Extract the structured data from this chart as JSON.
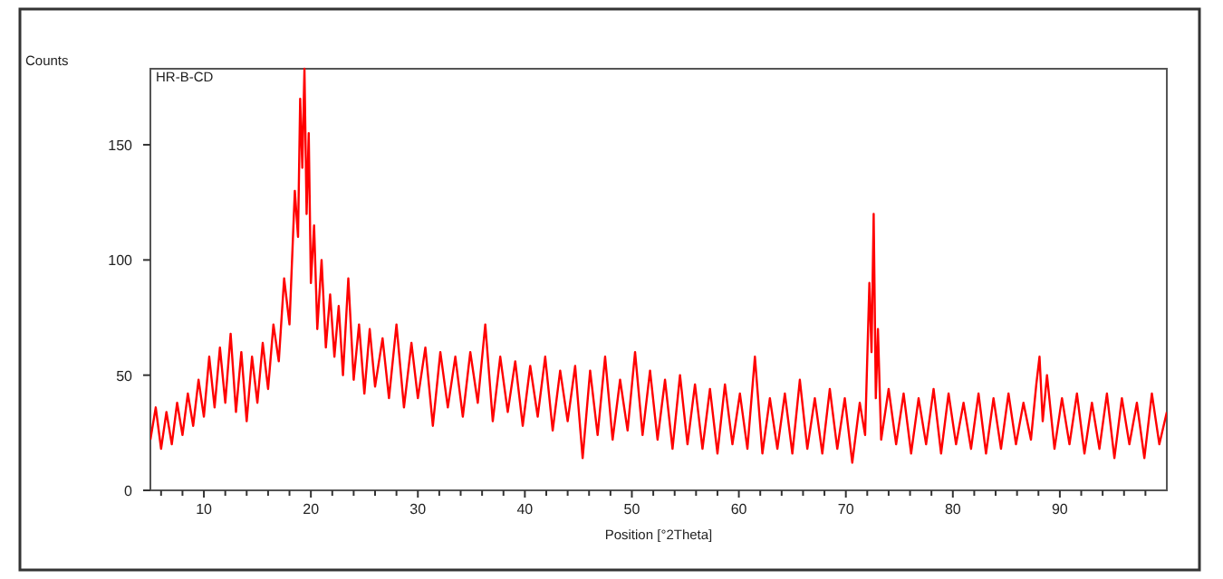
{
  "chart_data": {
    "type": "line",
    "title": "HR-B-CD",
    "xlabel": "Position [°2Theta]",
    "ylabel": "Counts",
    "xlim": [
      5,
      100
    ],
    "ylim": [
      0,
      183
    ],
    "xticks": [
      {
        "value": 6,
        "label": null
      },
      {
        "value": 8,
        "label": null
      },
      10,
      {
        "value": 12,
        "label": null
      },
      {
        "value": 14,
        "label": null
      },
      {
        "value": 16,
        "label": null
      },
      {
        "value": 18,
        "label": null
      },
      20,
      {
        "value": 22,
        "label": null
      },
      {
        "value": 24,
        "label": null
      },
      {
        "value": 26,
        "label": null
      },
      {
        "value": 28,
        "label": null
      },
      30,
      {
        "value": 32,
        "label": null
      },
      {
        "value": 34,
        "label": null
      },
      {
        "value": 36,
        "label": null
      },
      {
        "value": 38,
        "label": null
      },
      40,
      {
        "value": 42,
        "label": null
      },
      {
        "value": 44,
        "label": null
      },
      {
        "value": 46,
        "label": null
      },
      {
        "value": 48,
        "label": null
      },
      50,
      {
        "value": 52,
        "label": null
      },
      {
        "value": 54,
        "label": null
      },
      {
        "value": 56,
        "label": null
      },
      {
        "value": 58,
        "label": null
      },
      60,
      {
        "value": 62,
        "label": null
      },
      {
        "value": 64,
        "label": null
      },
      {
        "value": 66,
        "label": null
      },
      {
        "value": 68,
        "label": null
      },
      70,
      {
        "value": 72,
        "label": null
      },
      {
        "value": 74,
        "label": null
      },
      {
        "value": 76,
        "label": null
      },
      {
        "value": 78,
        "label": null
      },
      80,
      {
        "value": 82,
        "label": null
      },
      {
        "value": 84,
        "label": null
      },
      {
        "value": 86,
        "label": null
      },
      {
        "value": 88,
        "label": null
      },
      90,
      {
        "value": 92,
        "label": null
      },
      {
        "value": 94,
        "label": null
      },
      {
        "value": 96,
        "label": null
      },
      {
        "value": 98,
        "label": null
      }
    ],
    "yticks": [
      0,
      50,
      100,
      150
    ],
    "grid": false,
    "marker": "none",
    "line_style": "solid",
    "series": [
      {
        "color": "#ff0000",
        "x": [
          5.0,
          5.5,
          6.0,
          6.5,
          7.0,
          7.5,
          8.0,
          8.5,
          9.0,
          9.5,
          10.0,
          10.5,
          11.0,
          11.5,
          12.0,
          12.5,
          13.0,
          13.5,
          14.0,
          14.5,
          15.0,
          15.5,
          16.0,
          16.5,
          17.0,
          17.5,
          18.0,
          18.5,
          18.8,
          19.0,
          19.2,
          19.4,
          19.6,
          19.8,
          20.0,
          20.3,
          20.6,
          21.0,
          21.4,
          21.8,
          22.2,
          22.6,
          23.0,
          23.5,
          24.0,
          24.5,
          25.0,
          25.5,
          26.0,
          26.7,
          27.3,
          28.0,
          28.7,
          29.4,
          30.0,
          30.7,
          31.4,
          32.1,
          32.8,
          33.5,
          34.2,
          34.9,
          35.6,
          36.3,
          37.0,
          37.7,
          38.4,
          39.1,
          39.8,
          40.5,
          41.2,
          41.9,
          42.6,
          43.3,
          44.0,
          44.7,
          45.4,
          46.1,
          46.8,
          47.5,
          48.2,
          48.9,
          49.6,
          50.3,
          51.0,
          51.7,
          52.4,
          53.1,
          53.8,
          54.5,
          55.2,
          55.9,
          56.6,
          57.3,
          58.0,
          58.7,
          59.4,
          60.1,
          60.8,
          61.5,
          62.2,
          62.9,
          63.6,
          64.3,
          65.0,
          65.7,
          66.4,
          67.1,
          67.8,
          68.5,
          69.2,
          69.9,
          70.6,
          71.3,
          71.8,
          72.2,
          72.4,
          72.6,
          72.8,
          73.0,
          73.3,
          74.0,
          74.7,
          75.4,
          76.1,
          76.8,
          77.5,
          78.2,
          78.9,
          79.6,
          80.3,
          81.0,
          81.7,
          82.4,
          83.1,
          83.8,
          84.5,
          85.2,
          85.9,
          86.6,
          87.3,
          87.8,
          88.1,
          88.4,
          88.8,
          89.5,
          90.2,
          90.9,
          91.6,
          92.3,
          93.0,
          93.7,
          94.4,
          95.1,
          95.8,
          96.5,
          97.2,
          97.9,
          98.6,
          99.3,
          100.0
        ],
        "values": [
          22,
          36,
          18,
          34,
          20,
          38,
          24,
          42,
          28,
          48,
          32,
          58,
          36,
          62,
          38,
          68,
          34,
          60,
          30,
          58,
          38,
          64,
          44,
          72,
          56,
          92,
          72,
          130,
          110,
          170,
          140,
          183,
          120,
          155,
          90,
          115,
          70,
          100,
          62,
          85,
          58,
          80,
          50,
          92,
          48,
          72,
          42,
          70,
          45,
          66,
          40,
          72,
          36,
          64,
          40,
          62,
          28,
          60,
          36,
          58,
          32,
          60,
          38,
          72,
          30,
          58,
          34,
          56,
          28,
          54,
          32,
          58,
          26,
          52,
          30,
          54,
          14,
          52,
          24,
          58,
          22,
          48,
          26,
          60,
          24,
          52,
          22,
          48,
          18,
          50,
          20,
          46,
          18,
          44,
          16,
          46,
          20,
          42,
          18,
          58,
          16,
          40,
          18,
          42,
          16,
          48,
          18,
          40,
          16,
          44,
          18,
          40,
          12,
          38,
          24,
          90,
          60,
          120,
          40,
          70,
          22,
          44,
          20,
          42,
          16,
          40,
          20,
          44,
          16,
          42,
          20,
          38,
          18,
          42,
          16,
          40,
          18,
          42,
          20,
          38,
          22,
          46,
          58,
          30,
          50,
          18,
          40,
          20,
          42,
          16,
          38,
          18,
          42,
          14,
          40,
          20,
          38,
          14,
          42,
          20,
          34
        ]
      }
    ]
  }
}
